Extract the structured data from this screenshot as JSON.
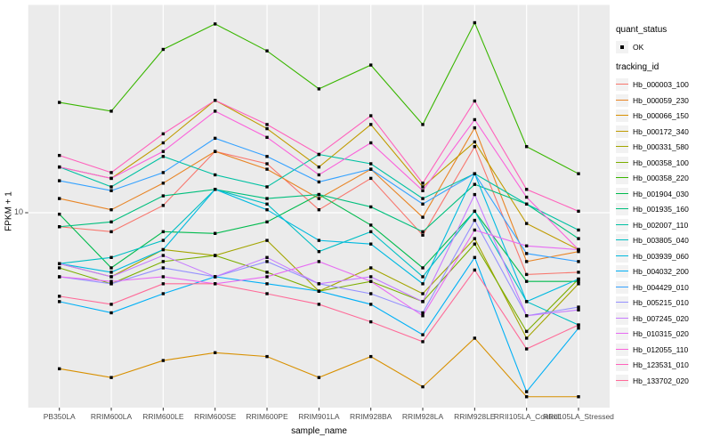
{
  "chart_data": {
    "type": "line",
    "title": "",
    "xlabel": "sample_name",
    "ylabel": "FPKM + 1",
    "y_scale": "log10",
    "y_ticks": [
      "10"
    ],
    "ylim_approx": [
      2.7,
      42
    ],
    "grid": "major-on",
    "legend_position": "right",
    "point_shape": "black-square",
    "point_color": "#000000",
    "panel_background": "#EBEBEB",
    "gridline_color": "#FFFFFF",
    "categories": [
      "PB350LA",
      "RRIM600LA",
      "RRIM600LE",
      "RRIM600SE",
      "RRIM600PE",
      "RRIM901LA",
      "RRIM928BA",
      "RRIM928LA",
      "RRIM928LE",
      "RRII105LA_Control",
      "RRII105LA_Stressed"
    ],
    "series": [
      {
        "name": "Hb_000003_100",
        "color": "#F8766D",
        "values": [
          9.1,
          8.8,
          10.5,
          15.1,
          13.9,
          10.2,
          12.6,
          8.6,
          15.6,
          6.6,
          6.7
        ]
      },
      {
        "name": "Hb_000059_230",
        "color": "#E88526",
        "values": [
          11.0,
          10.2,
          12.2,
          15.1,
          13.4,
          11.0,
          13.4,
          9.7,
          17.7,
          7.2,
          7.7
        ]
      },
      {
        "name": "Hb_000066_150",
        "color": "#D89000",
        "values": [
          3.5,
          3.3,
          3.7,
          3.9,
          3.8,
          3.3,
          3.8,
          3.1,
          4.3,
          2.9,
          2.9
        ]
      },
      {
        "name": "Hb_000172_340",
        "color": "#C09B00",
        "values": [
          13.6,
          12.6,
          16.0,
          21.3,
          17.6,
          13.6,
          18.1,
          11.9,
          16.1,
          9.3,
          7.8
        ]
      },
      {
        "name": "Hb_000331_580",
        "color": "#A3A500",
        "values": [
          7.1,
          6.5,
          7.8,
          7.5,
          8.3,
          5.9,
          6.9,
          5.8,
          8.4,
          4.3,
          6.2
        ]
      },
      {
        "name": "Hb_000358_100",
        "color": "#7CAE00",
        "values": [
          6.9,
          6.2,
          7.2,
          7.5,
          6.7,
          5.9,
          6.3,
          5.5,
          8.1,
          4.5,
          6.4
        ]
      },
      {
        "name": "Hb_000358_220",
        "color": "#39B600",
        "values": [
          21.0,
          19.8,
          30.0,
          35.6,
          29.7,
          23.0,
          27.0,
          18.1,
          35.9,
          15.6,
          13.0
        ]
      },
      {
        "name": "Hb_001904_030",
        "color": "#00BB4E",
        "values": [
          9.9,
          6.9,
          8.8,
          8.7,
          9.4,
          11.3,
          9.2,
          6.9,
          10.1,
          6.3,
          6.3
        ]
      },
      {
        "name": "Hb_001935_160",
        "color": "#00BF7D",
        "values": [
          9.1,
          9.4,
          11.2,
          11.7,
          11.0,
          11.3,
          10.4,
          8.8,
          12.1,
          10.6,
          8.4
        ]
      },
      {
        "name": "Hb_002007_110",
        "color": "#00C1A3",
        "values": [
          13.6,
          11.9,
          14.6,
          12.9,
          11.9,
          14.8,
          13.9,
          11.0,
          13.0,
          10.6,
          8.9
        ]
      },
      {
        "name": "Hb_003805_040",
        "color": "#00BFC4",
        "values": [
          7.1,
          7.4,
          8.3,
          11.7,
          10.6,
          7.7,
          8.8,
          6.5,
          10.1,
          5.5,
          4.7
        ]
      },
      {
        "name": "Hb_003939_060",
        "color": "#00BAE0",
        "values": [
          7.1,
          6.7,
          7.8,
          11.7,
          10.2,
          8.3,
          8.1,
          6.2,
          13.0,
          5.5,
          6.4
        ]
      },
      {
        "name": "Hb_004032_200",
        "color": "#00B0F6",
        "values": [
          5.5,
          5.1,
          5.8,
          6.5,
          6.2,
          5.9,
          5.4,
          4.4,
          7.4,
          3.0,
          4.6
        ]
      },
      {
        "name": "Hb_004429_010",
        "color": "#35A2FF",
        "values": [
          12.4,
          11.6,
          13.1,
          16.5,
          14.6,
          12.3,
          13.4,
          10.6,
          13.0,
          7.6,
          7.2
        ]
      },
      {
        "name": "Hb_005215_010",
        "color": "#9590FF",
        "values": [
          6.5,
          6.2,
          6.9,
          6.5,
          7.2,
          6.2,
          5.8,
          5.1,
          9.5,
          5.0,
          5.3
        ]
      },
      {
        "name": "Hb_007245_020",
        "color": "#C77CFF",
        "values": [
          7.1,
          6.5,
          7.5,
          6.5,
          7.4,
          6.2,
          6.5,
          5.5,
          11.3,
          5.0,
          5.2
        ]
      },
      {
        "name": "Hb_010315_020",
        "color": "#E76BF3",
        "values": [
          6.5,
          6.3,
          6.5,
          6.2,
          6.5,
          7.2,
          6.3,
          5.0,
          8.9,
          8.0,
          7.8
        ]
      },
      {
        "name": "Hb_012055_110",
        "color": "#FA62DB",
        "values": [
          13.6,
          12.6,
          15.1,
          19.8,
          16.6,
          12.9,
          16.0,
          11.6,
          18.7,
          11.1,
          7.8
        ]
      },
      {
        "name": "Hb_123531_010",
        "color": "#FF62BC",
        "values": [
          14.7,
          13.1,
          17.0,
          21.3,
          18.1,
          14.8,
          19.2,
          12.2,
          21.2,
          11.7,
          10.1
        ]
      },
      {
        "name": "Hb_133702_020",
        "color": "#FF6A98",
        "values": [
          5.7,
          5.4,
          6.2,
          6.2,
          5.8,
          5.4,
          4.8,
          4.2,
          6.8,
          4.0,
          4.7
        ]
      }
    ]
  },
  "legend": {
    "quant_status_title": "quant_status",
    "ok_label": "OK",
    "tracking_id_title": "tracking_id"
  }
}
